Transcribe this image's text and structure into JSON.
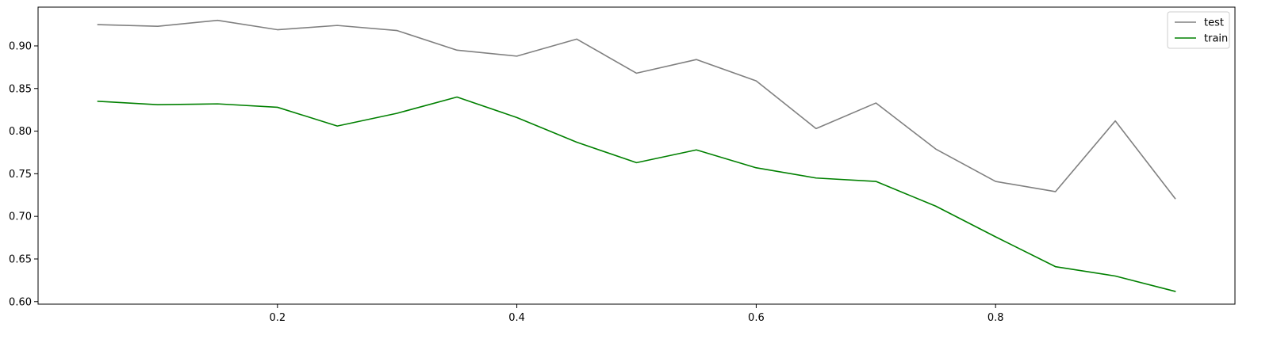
{
  "chart_data": {
    "type": "line",
    "title": "",
    "xlabel": "",
    "ylabel": "",
    "x": [
      0.05,
      0.1,
      0.15,
      0.2,
      0.25,
      0.3,
      0.35,
      0.4,
      0.45,
      0.5,
      0.55,
      0.6,
      0.65,
      0.7,
      0.75,
      0.8,
      0.85,
      0.9,
      0.95
    ],
    "xlim": [
      0.0,
      1.0
    ],
    "ylim": [
      0.597,
      0.9455
    ],
    "xticks": [
      0.2,
      0.4,
      0.6,
      0.8
    ],
    "xtick_labels": [
      "0.2",
      "0.4",
      "0.6",
      "0.8"
    ],
    "yticks": [
      0.6,
      0.65,
      0.7,
      0.75,
      0.8,
      0.85,
      0.9
    ],
    "ytick_labels": [
      "0.60",
      "0.65",
      "0.70",
      "0.75",
      "0.80",
      "0.85",
      "0.90"
    ],
    "grid": false,
    "legend_position": "top-right",
    "series": [
      {
        "name": "test",
        "color": "#808080",
        "values": [
          0.925,
          0.923,
          0.93,
          0.919,
          0.924,
          0.918,
          0.895,
          0.888,
          0.908,
          0.868,
          0.884,
          0.859,
          0.803,
          0.833,
          0.779,
          0.741,
          0.729,
          0.812,
          0.721
        ]
      },
      {
        "name": "train",
        "color": "#008000",
        "values": [
          0.835,
          0.831,
          0.832,
          0.828,
          0.806,
          0.821,
          0.84,
          0.816,
          0.787,
          0.763,
          0.778,
          0.757,
          0.745,
          0.741,
          0.712,
          0.676,
          0.641,
          0.63,
          0.612
        ]
      }
    ]
  }
}
